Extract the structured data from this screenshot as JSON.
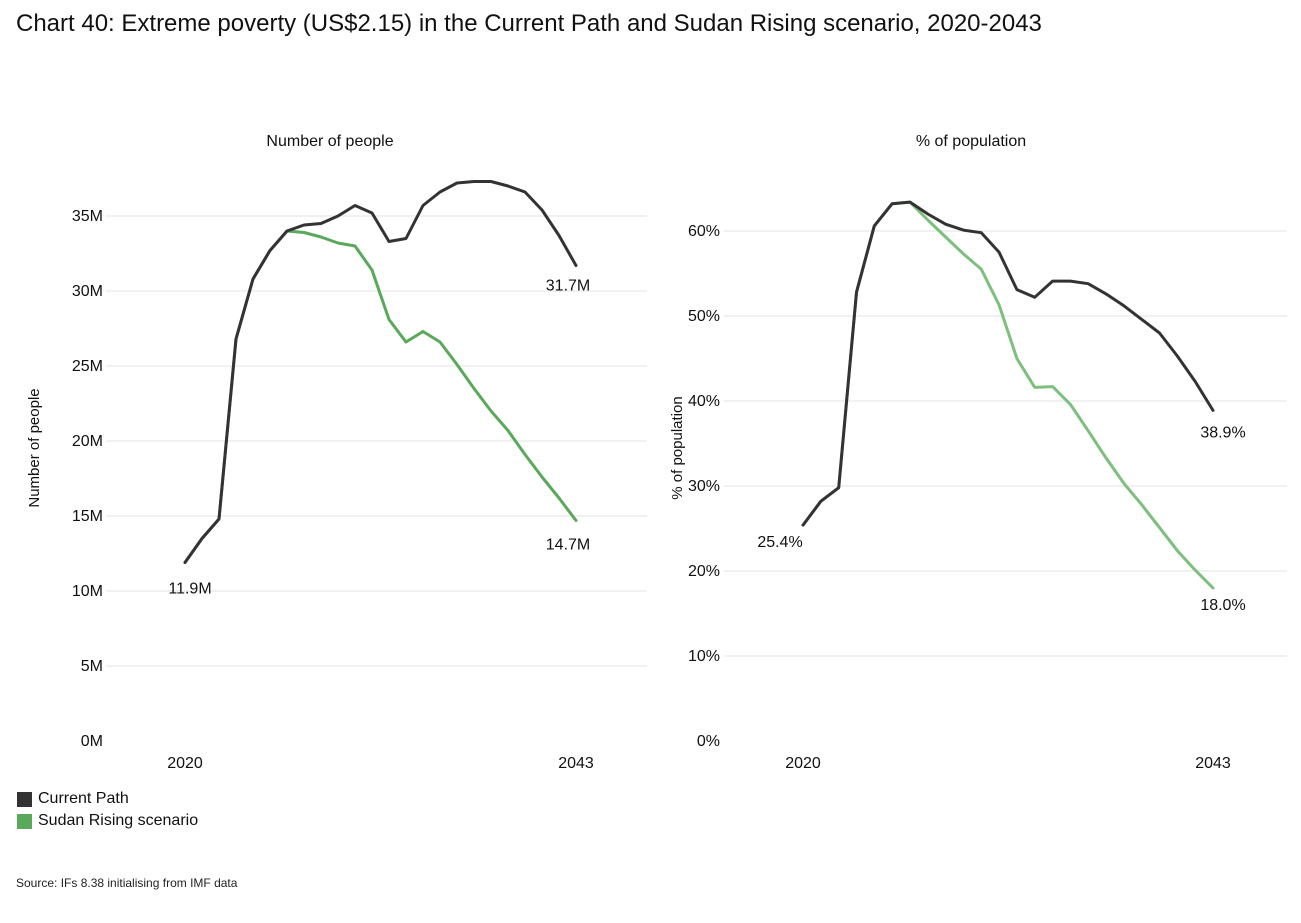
{
  "title": "Chart 40: Extreme poverty (US$2.15) in the Current Path and Sudan Rising scenario, 2020-2043",
  "source": "Source: IFs 8.38 initialising from IMF data",
  "colors": {
    "current_path": "#333333",
    "sudan_rising": "#5aa85a",
    "sudan_rising_pct": "#7dbf7d",
    "grid": "#e3e3e3"
  },
  "legend": [
    {
      "label": "Current Path",
      "color": "#333333"
    },
    {
      "label": "Sudan Rising scenario",
      "color": "#5aa85a"
    }
  ],
  "chart_data": [
    {
      "type": "line",
      "title": "Number of people",
      "ylabel": "Number of people",
      "xlabel": "",
      "x": [
        2020,
        2021,
        2022,
        2023,
        2024,
        2025,
        2026,
        2027,
        2028,
        2029,
        2030,
        2031,
        2032,
        2033,
        2034,
        2035,
        2036,
        2037,
        2038,
        2039,
        2040,
        2041,
        2042,
        2043
      ],
      "ylim": [
        0,
        37
      ],
      "yticks": [
        0,
        5,
        10,
        15,
        20,
        25,
        30,
        35
      ],
      "ytick_labels": [
        "0M",
        "5M",
        "10M",
        "15M",
        "20M",
        "25M",
        "30M",
        "35M"
      ],
      "xtick_labels": [
        "2020",
        "2043"
      ],
      "series": [
        {
          "name": "Current Path",
          "values": [
            11.9,
            13.5,
            14.8,
            26.8,
            30.8,
            32.7,
            34.0,
            34.4,
            34.5,
            35.0,
            35.7,
            35.2,
            33.3,
            33.5,
            35.7,
            36.6,
            37.2,
            37.3,
            37.3,
            37.0,
            36.6,
            35.4,
            33.7,
            31.7
          ]
        },
        {
          "name": "Sudan Rising scenario",
          "values": [
            11.9,
            13.5,
            14.8,
            26.8,
            30.8,
            32.7,
            34.0,
            33.9,
            33.6,
            33.2,
            33.0,
            31.4,
            28.1,
            26.6,
            27.3,
            26.6,
            25.1,
            23.5,
            22.0,
            20.7,
            19.1,
            17.6,
            16.2,
            14.7
          ]
        }
      ],
      "annotations": [
        {
          "text": "11.9M",
          "x": 2020,
          "y": 11.9
        },
        {
          "text": "31.7M",
          "x": 2043,
          "y": 31.7
        },
        {
          "text": "14.7M",
          "x": 2043,
          "y": 14.7
        }
      ]
    },
    {
      "type": "line",
      "title": "% of population",
      "ylabel": "% of population",
      "xlabel": "",
      "x": [
        2020,
        2021,
        2022,
        2023,
        2024,
        2025,
        2026,
        2027,
        2028,
        2029,
        2030,
        2031,
        2032,
        2033,
        2034,
        2035,
        2036,
        2037,
        2038,
        2039,
        2040,
        2041,
        2042,
        2043
      ],
      "ylim": [
        0,
        66
      ],
      "yticks": [
        0,
        10,
        20,
        30,
        40,
        50,
        60
      ],
      "ytick_labels": [
        "0%",
        "10%",
        "20%",
        "30%",
        "40%",
        "50%",
        "60%"
      ],
      "xtick_labels": [
        "2020",
        "2043"
      ],
      "series": [
        {
          "name": "Current Path",
          "values": [
            25.4,
            28.2,
            29.8,
            52.8,
            60.6,
            63.2,
            63.4,
            62.0,
            60.8,
            60.1,
            59.8,
            57.5,
            53.1,
            52.2,
            54.1,
            54.1,
            53.8,
            52.6,
            51.2,
            49.6,
            48.0,
            45.3,
            42.3,
            38.9
          ]
        },
        {
          "name": "Sudan Rising scenario",
          "values": [
            25.4,
            28.2,
            29.8,
            52.8,
            60.6,
            63.2,
            63.4,
            61.3,
            59.3,
            57.3,
            55.5,
            51.3,
            45.0,
            41.6,
            41.7,
            39.6,
            36.5,
            33.3,
            30.3,
            27.8,
            25.1,
            22.4,
            20.1,
            18.0
          ]
        }
      ],
      "annotations": [
        {
          "text": "25.4%",
          "x": 2020,
          "y": 25.4
        },
        {
          "text": "38.9%",
          "x": 2043,
          "y": 38.9
        },
        {
          "text": "18.0%",
          "x": 2043,
          "y": 18.0
        }
      ]
    }
  ]
}
